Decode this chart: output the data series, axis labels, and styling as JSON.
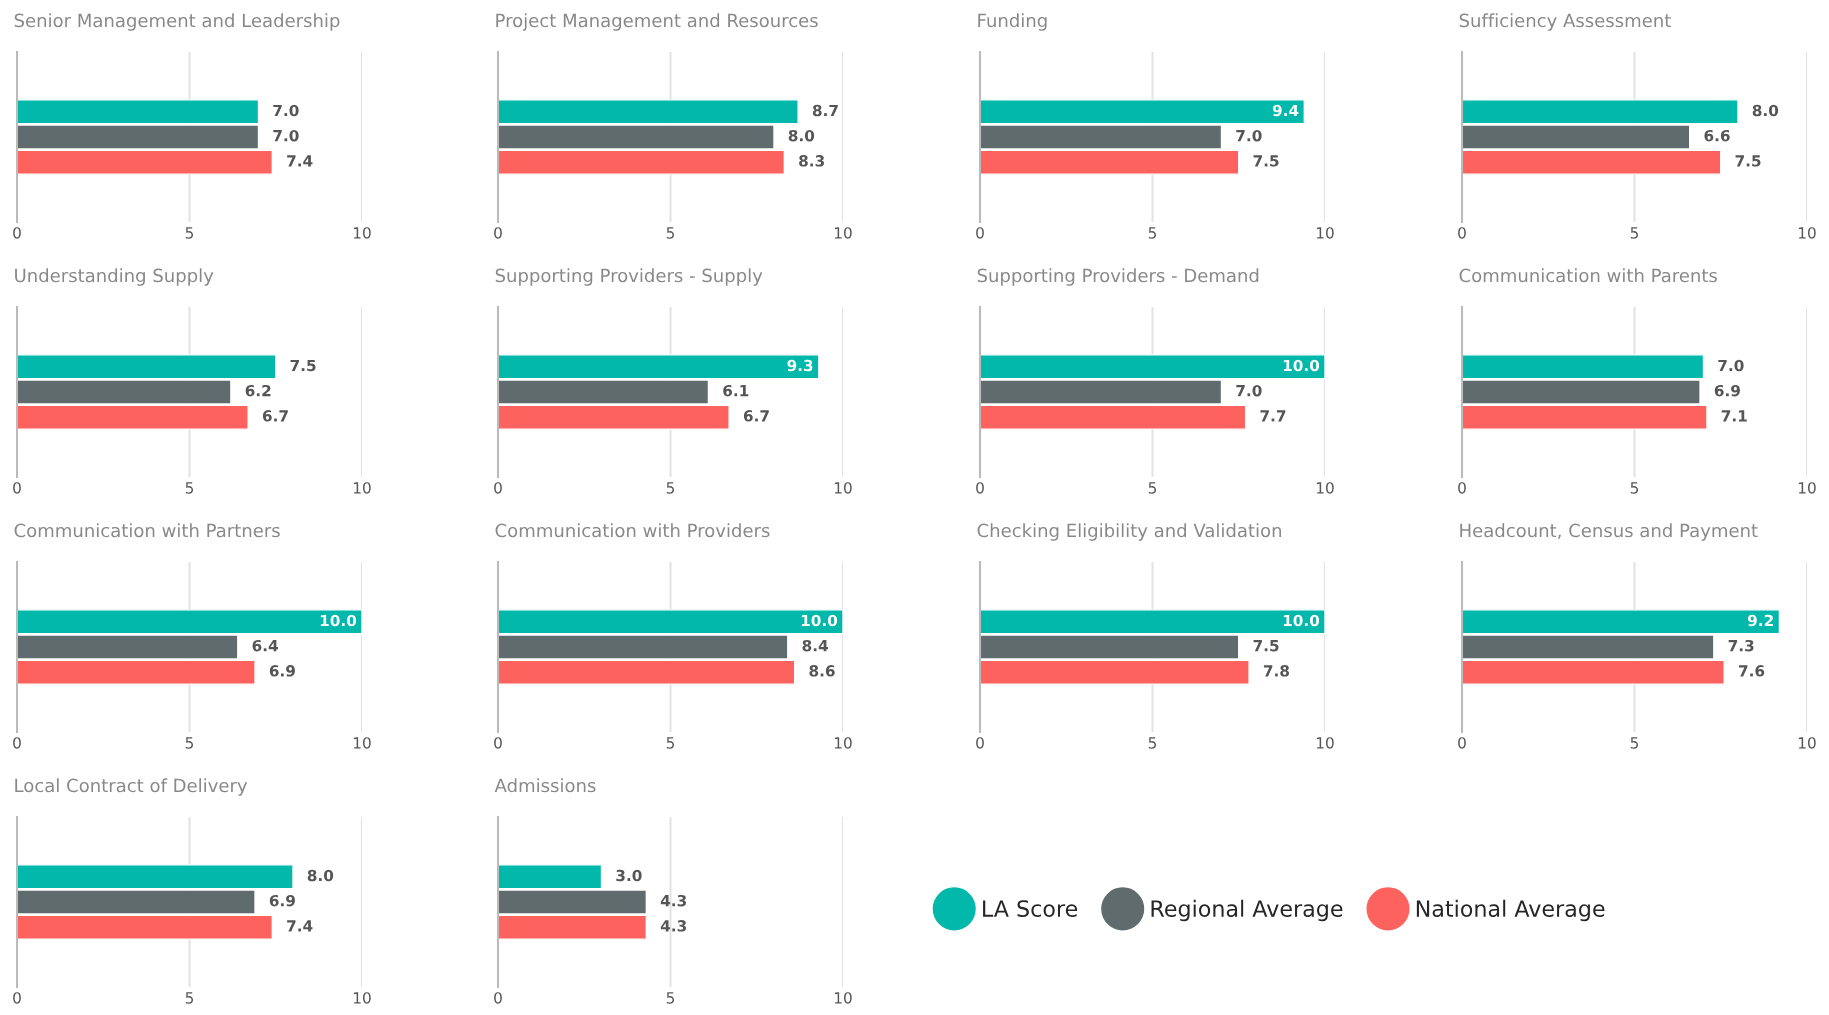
{
  "chart_data": [
    {
      "type": "bar",
      "orientation": "horizontal",
      "title": "Senior Management and Leadership",
      "categories": [
        null
      ],
      "xlim": [
        0,
        10
      ],
      "xticks": [
        0,
        5,
        10
      ],
      "grid": "x",
      "tick_labels": "x",
      "legend": false,
      "series": [
        {
          "color": "#01b8aa",
          "values": [
            7.0
          ],
          "value_labels": [
            "7.0"
          ]
        },
        {
          "color": "#5f6b6d",
          "values": [
            7.0
          ],
          "value_labels": [
            "7.0"
          ]
        },
        {
          "color": "#fd625e",
          "values": [
            7.4
          ],
          "value_labels": [
            "7.4"
          ]
        }
      ]
    },
    {
      "type": "bar",
      "orientation": "horizontal",
      "title": "Project Management and Resources",
      "categories": [
        null
      ],
      "xlim": [
        0,
        10
      ],
      "xticks": [
        0,
        5,
        10
      ],
      "grid": "x",
      "tick_labels": "x",
      "legend": false,
      "series": [
        {
          "color": "#01b8aa",
          "values": [
            8.7
          ],
          "value_labels": [
            "8.7"
          ]
        },
        {
          "color": "#5f6b6d",
          "values": [
            8.0
          ],
          "value_labels": [
            "8.0"
          ]
        },
        {
          "color": "#fd625e",
          "values": [
            8.3
          ],
          "value_labels": [
            "8.3"
          ]
        }
      ]
    },
    {
      "type": "bar",
      "orientation": "horizontal",
      "title": "Funding",
      "categories": [
        null
      ],
      "xlim": [
        0,
        10
      ],
      "xticks": [
        0,
        5,
        10
      ],
      "grid": "x",
      "tick_labels": "x",
      "legend": false,
      "series": [
        {
          "color": "#01b8aa",
          "values": [
            9.4
          ],
          "value_labels": [
            "9.4"
          ]
        },
        {
          "color": "#5f6b6d",
          "values": [
            7.0
          ],
          "value_labels": [
            "7.0"
          ]
        },
        {
          "color": "#fd625e",
          "values": [
            7.5
          ],
          "value_labels": [
            "7.5"
          ]
        }
      ]
    },
    {
      "type": "bar",
      "orientation": "horizontal",
      "title": "Sufficiency Assessment",
      "categories": [
        null
      ],
      "xlim": [
        0,
        10
      ],
      "xticks": [
        0,
        5,
        10
      ],
      "grid": "x",
      "tick_labels": "x",
      "legend": false,
      "series": [
        {
          "color": "#01b8aa",
          "values": [
            8.0
          ],
          "value_labels": [
            "8.0"
          ]
        },
        {
          "color": "#5f6b6d",
          "values": [
            6.6
          ],
          "value_labels": [
            "6.6"
          ]
        },
        {
          "color": "#fd625e",
          "values": [
            7.5
          ],
          "value_labels": [
            "7.5"
          ]
        }
      ]
    },
    {
      "type": "bar",
      "orientation": "horizontal",
      "title": "Understanding Supply",
      "categories": [
        null
      ],
      "xlim": [
        0,
        10
      ],
      "xticks": [
        0,
        5,
        10
      ],
      "grid": "x",
      "tick_labels": "x",
      "legend": false,
      "series": [
        {
          "color": "#01b8aa",
          "values": [
            7.5
          ],
          "value_labels": [
            "7.5"
          ]
        },
        {
          "color": "#5f6b6d",
          "values": [
            6.2
          ],
          "value_labels": [
            "6.2"
          ]
        },
        {
          "color": "#fd625e",
          "values": [
            6.7
          ],
          "value_labels": [
            "6.7"
          ]
        }
      ]
    },
    {
      "type": "bar",
      "orientation": "horizontal",
      "title": "Supporting Providers - Supply",
      "categories": [
        null
      ],
      "xlim": [
        0,
        10
      ],
      "xticks": [
        0,
        5,
        10
      ],
      "grid": "x",
      "tick_labels": "x",
      "legend": false,
      "series": [
        {
          "color": "#01b8aa",
          "values": [
            9.3
          ],
          "value_labels": [
            "9.3"
          ]
        },
        {
          "color": "#5f6b6d",
          "values": [
            6.1
          ],
          "value_labels": [
            "6.1"
          ]
        },
        {
          "color": "#fd625e",
          "values": [
            6.7
          ],
          "value_labels": [
            "6.7"
          ]
        }
      ]
    },
    {
      "type": "bar",
      "orientation": "horizontal",
      "title": "Supporting Providers - Demand",
      "categories": [
        null
      ],
      "xlim": [
        0,
        10
      ],
      "xticks": [
        0,
        5,
        10
      ],
      "grid": "x",
      "tick_labels": "x",
      "legend": false,
      "series": [
        {
          "color": "#01b8aa",
          "values": [
            10.0
          ],
          "value_labels": [
            "10.0"
          ]
        },
        {
          "color": "#5f6b6d",
          "values": [
            7.0
          ],
          "value_labels": [
            "7.0"
          ]
        },
        {
          "color": "#fd625e",
          "values": [
            7.7
          ],
          "value_labels": [
            "7.7"
          ]
        }
      ]
    },
    {
      "type": "bar",
      "orientation": "horizontal",
      "title": "Communication with Parents",
      "categories": [
        null
      ],
      "xlim": [
        0,
        10
      ],
      "xticks": [
        0,
        5,
        10
      ],
      "grid": "x",
      "tick_labels": "x",
      "legend": false,
      "series": [
        {
          "color": "#01b8aa",
          "values": [
            7.0
          ],
          "value_labels": [
            "7.0"
          ]
        },
        {
          "color": "#5f6b6d",
          "values": [
            6.9
          ],
          "value_labels": [
            "6.9"
          ]
        },
        {
          "color": "#fd625e",
          "values": [
            7.1
          ],
          "value_labels": [
            "7.1"
          ]
        }
      ]
    },
    {
      "type": "bar",
      "orientation": "horizontal",
      "title": "Communication with Partners",
      "categories": [
        null
      ],
      "xlim": [
        0,
        10
      ],
      "xticks": [
        0,
        5,
        10
      ],
      "grid": "x",
      "tick_labels": "x",
      "legend": false,
      "series": [
        {
          "color": "#01b8aa",
          "values": [
            10.0
          ],
          "value_labels": [
            "10.0"
          ]
        },
        {
          "color": "#5f6b6d",
          "values": [
            6.4
          ],
          "value_labels": [
            "6.4"
          ]
        },
        {
          "color": "#fd625e",
          "values": [
            6.9
          ],
          "value_labels": [
            "6.9"
          ]
        }
      ]
    },
    {
      "type": "bar",
      "orientation": "horizontal",
      "title": "Communication with Providers",
      "categories": [
        null
      ],
      "xlim": [
        0,
        10
      ],
      "xticks": [
        0,
        5,
        10
      ],
      "grid": "x",
      "tick_labels": "x",
      "legend": false,
      "series": [
        {
          "color": "#01b8aa",
          "values": [
            10.0
          ],
          "value_labels": [
            "10.0"
          ]
        },
        {
          "color": "#5f6b6d",
          "values": [
            8.4
          ],
          "value_labels": [
            "8.4"
          ]
        },
        {
          "color": "#fd625e",
          "values": [
            8.6
          ],
          "value_labels": [
            "8.6"
          ]
        }
      ]
    },
    {
      "type": "bar",
      "orientation": "horizontal",
      "title": "Checking Eligibility and Validation",
      "categories": [
        null
      ],
      "xlim": [
        0,
        10
      ],
      "xticks": [
        0,
        5,
        10
      ],
      "grid": "x",
      "tick_labels": "x",
      "legend": false,
      "series": [
        {
          "color": "#01b8aa",
          "values": [
            10.0
          ],
          "value_labels": [
            "10.0"
          ]
        },
        {
          "color": "#5f6b6d",
          "values": [
            7.5
          ],
          "value_labels": [
            "7.5"
          ]
        },
        {
          "color": "#fd625e",
          "values": [
            7.8
          ],
          "value_labels": [
            "7.8"
          ]
        }
      ]
    },
    {
      "type": "bar",
      "orientation": "horizontal",
      "title": "Headcount, Census and Payment",
      "categories": [
        null
      ],
      "xlim": [
        0,
        10
      ],
      "xticks": [
        0,
        5,
        10
      ],
      "grid": "x",
      "tick_labels": "x",
      "legend": false,
      "series": [
        {
          "color": "#01b8aa",
          "values": [
            9.2
          ],
          "value_labels": [
            "9.2"
          ]
        },
        {
          "color": "#5f6b6d",
          "values": [
            7.3
          ],
          "value_labels": [
            "7.3"
          ]
        },
        {
          "color": "#fd625e",
          "values": [
            7.6
          ],
          "value_labels": [
            "7.6"
          ]
        }
      ]
    },
    {
      "type": "bar",
      "orientation": "horizontal",
      "title": "Local Contract of Delivery",
      "categories": [
        null
      ],
      "xlim": [
        0,
        10
      ],
      "xticks": [
        0,
        5,
        10
      ],
      "grid": "x",
      "tick_labels": "x",
      "legend": false,
      "series": [
        {
          "color": "#01b8aa",
          "values": [
            8.0
          ],
          "value_labels": [
            "8.0"
          ]
        },
        {
          "color": "#5f6b6d",
          "values": [
            6.9
          ],
          "value_labels": [
            "6.9"
          ]
        },
        {
          "color": "#fd625e",
          "values": [
            7.4
          ],
          "value_labels": [
            "7.4"
          ]
        }
      ]
    },
    {
      "type": "bar",
      "orientation": "horizontal",
      "title": "Admissions",
      "categories": [
        null
      ],
      "xlim": [
        0,
        10
      ],
      "xticks": [
        0,
        5,
        10
      ],
      "grid": "x",
      "tick_labels": "x",
      "legend": "right",
      "series": [
        {
          "name": "LA Score",
          "color": "#01b8aa",
          "values": [
            3.0
          ],
          "value_labels": [
            "3.0"
          ]
        },
        {
          "name": "Regional Average",
          "color": "#5f6b6d",
          "values": [
            4.3
          ],
          "value_labels": [
            "4.3"
          ]
        },
        {
          "name": "National Average",
          "color": "#fd625e",
          "values": [
            4.3
          ],
          "value_labels": [
            "4.3"
          ]
        }
      ]
    }
  ]
}
